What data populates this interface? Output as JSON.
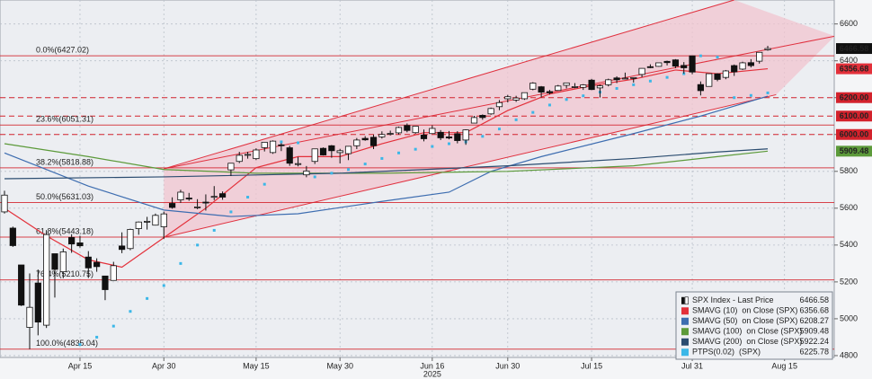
{
  "chart_data": {
    "type": "candlestick",
    "categories": [
      null,
      null,
      null,
      null,
      null,
      null,
      null,
      null,
      null,
      "Apr 15",
      null,
      null,
      null,
      null,
      null,
      null,
      null,
      null,
      null,
      "Apr 30",
      null,
      null,
      null,
      null,
      null,
      null,
      null,
      null,
      null,
      null,
      "May 15",
      null,
      null,
      null,
      null,
      null,
      null,
      null,
      null,
      null,
      "May 30",
      null,
      null,
      null,
      null,
      null,
      null,
      null,
      null,
      null,
      null,
      "Jun 16",
      null,
      null,
      null,
      null,
      null,
      null,
      null,
      null,
      "Jun 30",
      null,
      null,
      null,
      null,
      null,
      null,
      null,
      null,
      null,
      "Jul 15",
      null,
      null,
      null,
      null,
      null,
      null,
      null,
      null,
      null,
      null,
      null,
      "Jul 31",
      null,
      null,
      null,
      null,
      null,
      null,
      null,
      null,
      null,
      null,
      "Aug 15"
    ],
    "year_label": "2025",
    "price": {
      "name": "SPX Index - Last Price",
      "open": [
        5580,
        5492,
        5292,
        4953,
        5194,
        4965,
        5353,
        5255,
        5441,
        5412,
        5335,
        5306,
        5232,
        5208,
        5395,
        5381,
        5489,
        5529,
        5508,
        5499,
        5626,
        5645,
        5655,
        5605,
        5633,
        5663,
        5679,
        5808,
        5854,
        5891,
        5869,
        5929,
        5902,
        5944,
        5928,
        5841,
        5781,
        5854,
        5925,
        5939,
        5902,
        5896,
        5939,
        5979,
        5985,
        5987,
        6004,
        6009,
        6049,
        6010,
        5997,
        6005,
        6012,
        5987,
        6004,
        5970,
        6062,
        6104,
        6112,
        6151,
        6194,
        6187,
        6194,
        6246,
        6259,
        6233,
        6239,
        6267,
        6255,
        6256,
        6295,
        6253,
        6270,
        6307,
        6304,
        6307,
        6326,
        6368,
        6370,
        6397,
        6405,
        6375,
        6427,
        6271,
        6261,
        6329,
        6310,
        6374,
        6355,
        6390,
        6398,
        6460,
        null,
        null
      ],
      "high": [
        5695,
        5500,
        5292,
        5246,
        5267,
        5481,
        5353,
        5381,
        5459,
        5450,
        5367,
        5328,
        5232,
        5309,
        5469,
        5489,
        5528,
        5553,
        5571,
        5581,
        5659,
        5700,
        5683,
        5649,
        5675,
        5720,
        5691,
        5845,
        5906,
        5906,
        5925,
        5959,
        5968,
        5953,
        5939,
        5878,
        5829,
        5922,
        5930,
        5943,
        5922,
        5938,
        5981,
        5991,
        5999,
        6017,
        6021,
        6043,
        6060,
        6045,
        6027,
        6050,
        6024,
        6019,
        6018,
        6028,
        6101,
        6109,
        6146,
        6187,
        6215,
        6210,
        6227,
        6284,
        6263,
        6242,
        6269,
        6280,
        6279,
        6273,
        6302,
        6270,
        6303,
        6316,
        6336,
        6310,
        6360,
        6381,
        6389,
        6401,
        6409,
        6393,
        6427,
        6288,
        6330,
        6333,
        6350,
        6380,
        6395,
        6409,
        6446,
        6481,
        null,
        null
      ],
      "low": [
        5571,
        5390,
        5069,
        4835,
        4910,
        4950,
        5115,
        5220,
        5358,
        5386,
        5221,
        5255,
        5101,
        5208,
        5356,
        5372,
        5456,
        5484,
        5506,
        5434,
        5597,
        5629,
        5640,
        5595,
        5587,
        5644,
        5646,
        5775,
        5845,
        5869,
        5861,
        5908,
        5895,
        5910,
        5830,
        5827,
        5768,
        5840,
        5886,
        5874,
        5843,
        5861,
        5921,
        5966,
        5921,
        5978,
        5995,
        6000,
        6012,
        6004,
        5963,
        6005,
        5970,
        5974,
        5952,
        5944,
        6062,
        6080,
        6107,
        6132,
        6174,
        6177,
        6188,
        6240,
        6201,
        6217,
        6237,
        6250,
        6251,
        6242,
        6241,
        6201,
        6261,
        6279,
        6303,
        6282,
        6311,
        6360,
        6368,
        6375,
        6360,
        6331,
        6327,
        6212,
        6260,
        6289,
        6300,
        6318,
        6350,
        6364,
        6385,
        6455,
        null,
        null
      ],
      "close": [
        5671,
        5397,
        5074,
        5062,
        4982,
        5457,
        5268,
        5363,
        5406,
        5396,
        5276,
        5283,
        5158,
        5288,
        5376,
        5485,
        5525,
        5529,
        5561,
        5569,
        5604,
        5687,
        5650,
        5607,
        5631,
        5664,
        5660,
        5844,
        5887,
        5892,
        5916,
        5958,
        5964,
        5940,
        5844,
        5842,
        5802,
        5922,
        5889,
        5912,
        5912,
        5936,
        5970,
        5971,
        5939,
        6000,
        6006,
        6038,
        6022,
        6045,
        5977,
        6033,
        5982,
        5981,
        5967,
        6025,
        6092,
        6092,
        6141,
        6173,
        6205,
        6198,
        6227,
        6279,
        6230,
        6226,
        6263,
        6280,
        6260,
        6269,
        6244,
        6264,
        6297,
        6297,
        6306,
        6309,
        6359,
        6363,
        6389,
        6390,
        6371,
        6362,
        6339,
        6238,
        6330,
        6299,
        6345,
        6340,
        6389,
        6374,
        6446,
        6466.58,
        null,
        null
      ]
    },
    "series": [
      {
        "name": "SMAVG (10)  on Close (SPX)",
        "style": "line",
        "color": "#e3303a",
        "tag": true,
        "x": [
          0,
          5,
          10,
          14,
          19,
          24,
          30,
          35,
          40,
          45,
          50,
          55,
          60,
          65,
          70,
          75,
          80,
          85,
          91
        ],
        "values": [
          5600,
          5450,
          5320,
          5280,
          5440,
          5600,
          5820,
          5880,
          5880,
          5950,
          6010,
          6010,
          6130,
          6220,
          6265,
          6300,
          6350,
          6330,
          6356.68
        ]
      },
      {
        "name": "SMAVG (50)  on Close (SPX)",
        "style": "line",
        "color": "#3d6db0",
        "tag": false,
        "x": [
          0,
          10,
          19,
          27,
          35,
          45,
          53,
          58,
          64,
          75,
          83,
          91
        ],
        "values": [
          5900,
          5720,
          5590,
          5555,
          5570,
          5637,
          5687,
          5800,
          5880,
          6005,
          6100,
          6208.27
        ]
      },
      {
        "name": "SMAVG (100)  on Close (SPX)",
        "style": "line",
        "color": "#5c9a3a",
        "tag": true,
        "x": [
          0,
          10,
          19,
          30,
          45,
          60,
          75,
          85,
          91
        ],
        "values": [
          5950,
          5880,
          5810,
          5790,
          5790,
          5800,
          5830,
          5880,
          5909.48
        ]
      },
      {
        "name": "SMAVG (200)  on Close (SPX)",
        "style": "line",
        "color": "#2b4c70",
        "tag": false,
        "x": [
          0,
          19,
          40,
          60,
          75,
          85,
          91
        ],
        "values": [
          5760,
          5770,
          5790,
          5830,
          5870,
          5905,
          5922.24
        ]
      },
      {
        "name": "PTPS(0.02)  (SPX)",
        "style": "dots",
        "color": "#3bb7e8",
        "tag": false,
        "x": [
          9,
          11,
          13,
          15,
          17,
          19,
          21,
          23,
          25,
          27,
          29,
          31,
          33,
          35,
          37,
          39,
          41,
          43,
          45,
          47,
          49,
          51,
          53,
          55,
          57,
          59,
          61,
          63,
          65,
          67,
          69,
          71,
          73,
          75,
          77,
          79,
          81,
          83,
          85,
          87,
          89,
          91
        ],
        "values": [
          4860,
          4900,
          4960,
          5040,
          5110,
          5180,
          5300,
          5400,
          5480,
          5580,
          5660,
          5730,
          5960,
          5955,
          5770,
          5790,
          5810,
          5840,
          5870,
          5900,
          5920,
          5935,
          5950,
          5960,
          5990,
          6030,
          6080,
          6120,
          6160,
          6190,
          6210,
          6230,
          6250,
          6270,
          6290,
          6310,
          6330,
          6427,
          6420,
          6200,
          6212,
          6225.78
        ]
      }
    ],
    "fib_levels": [
      {
        "value": 6427.02,
        "label": "0.0%(6427.02)"
      },
      {
        "value": 6051.31,
        "label": "23.6%(6051.31)"
      },
      {
        "value": 5818.88,
        "label": "38.2%(5818.88)"
      },
      {
        "value": 5631.03,
        "label": "50.0%(5631.03)"
      },
      {
        "value": 5443.18,
        "label": "61.8%(5443.18)"
      },
      {
        "value": 5210.75,
        "label": "76.4%(5210.75)"
      },
      {
        "value": 4835.04,
        "label": "100.0%(4835.04)"
      }
    ],
    "fib_color": "#d3222c",
    "levels": [
      {
        "value": 6200,
        "label": "6200.00"
      },
      {
        "value": 6100,
        "label": "6100.00"
      },
      {
        "value": 6000,
        "label": "6000.00"
      }
    ],
    "level_color": "#d3222c",
    "channel": {
      "color": "#e0303e",
      "fill": "#f2c4cf",
      "lines": [
        {
          "x": [
            19,
            87
          ],
          "values": [
            5814,
            6730
          ]
        },
        {
          "x": [
            19,
            99
          ],
          "values": [
            5814,
            6534
          ]
        },
        {
          "x": [
            19,
            92
          ],
          "values": [
            5442,
            6216
          ]
        }
      ]
    },
    "ylim": [
      4790,
      6730
    ],
    "yticks": [
      4800,
      5000,
      5200,
      5400,
      5600,
      5800,
      6000,
      6200,
      6400,
      6600
    ],
    "grid": true
  }
}
